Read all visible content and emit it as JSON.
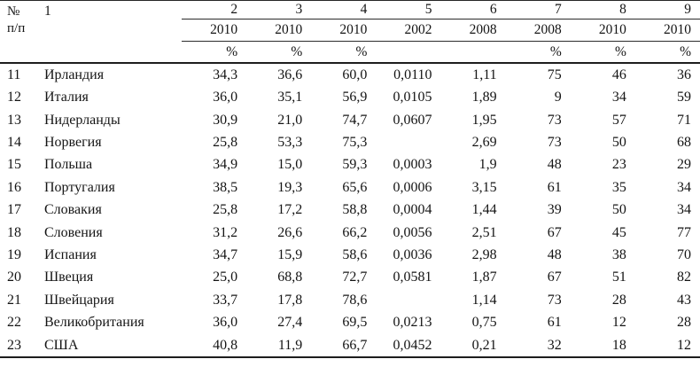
{
  "table": {
    "header": {
      "row_num_label_line1": "№",
      "row_num_label_line2": "п/п",
      "name_col_number": "1",
      "col_numbers": [
        "2",
        "3",
        "4",
        "5",
        "6",
        "7",
        "8",
        "9"
      ],
      "years": [
        "2010",
        "2010",
        "2010",
        "2002",
        "2008",
        "2008",
        "2010",
        "2010"
      ],
      "units": [
        "%",
        "%",
        "%",
        "",
        "",
        "%",
        "%",
        "%"
      ]
    },
    "rows": [
      {
        "num": "11",
        "name": "Ирландия",
        "values": [
          "34,3",
          "36,6",
          "60,0",
          "0,0110",
          "1,11",
          "75",
          "46",
          "36"
        ]
      },
      {
        "num": "12",
        "name": "Италия",
        "values": [
          "36,0",
          "35,1",
          "56,9",
          "0,0105",
          "1,89",
          "9",
          "34",
          "59"
        ]
      },
      {
        "num": "13",
        "name": "Нидерланды",
        "values": [
          "30,9",
          "21,0",
          "74,7",
          "0,0607",
          "1,95",
          "73",
          "57",
          "71"
        ]
      },
      {
        "num": "14",
        "name": "Норвегия",
        "values": [
          "25,8",
          "53,3",
          "75,3",
          "",
          "2,69",
          "73",
          "50",
          "68"
        ]
      },
      {
        "num": "15",
        "name": "Польша",
        "values": [
          "34,9",
          "15,0",
          "59,3",
          "0,0003",
          "1,9",
          "48",
          "23",
          "29"
        ]
      },
      {
        "num": "16",
        "name": "Португалия",
        "values": [
          "38,5",
          "19,3",
          "65,6",
          "0,0006",
          "3,15",
          "61",
          "35",
          "34"
        ]
      },
      {
        "num": "17",
        "name": "Словакия",
        "values": [
          "25,8",
          "17,2",
          "58,8",
          "0,0004",
          "1,44",
          "39",
          "50",
          "34"
        ]
      },
      {
        "num": "18",
        "name": "Словения",
        "values": [
          "31,2",
          "26,6",
          "66,2",
          "0,0056",
          "2,51",
          "67",
          "45",
          "77"
        ]
      },
      {
        "num": "19",
        "name": "Испания",
        "values": [
          "34,7",
          "15,9",
          "58,6",
          "0,0036",
          "2,98",
          "48",
          "38",
          "70"
        ]
      },
      {
        "num": "20",
        "name": "Швеция",
        "values": [
          "25,0",
          "68,8",
          "72,7",
          "0,0581",
          "1,87",
          "67",
          "51",
          "82"
        ]
      },
      {
        "num": "21",
        "name": "Швейцария",
        "values": [
          "33,7",
          "17,8",
          "78,6",
          "",
          "1,14",
          "73",
          "28",
          "43"
        ]
      },
      {
        "num": "22",
        "name": "Великобритания",
        "values": [
          "36,0",
          "27,4",
          "69,5",
          "0,0213",
          "0,75",
          "61",
          "12",
          "28"
        ]
      },
      {
        "num": "23",
        "name": "США",
        "values": [
          "40,8",
          "11,9",
          "66,7",
          "0,0452",
          "0,21",
          "32",
          "18",
          "12"
        ]
      }
    ]
  }
}
